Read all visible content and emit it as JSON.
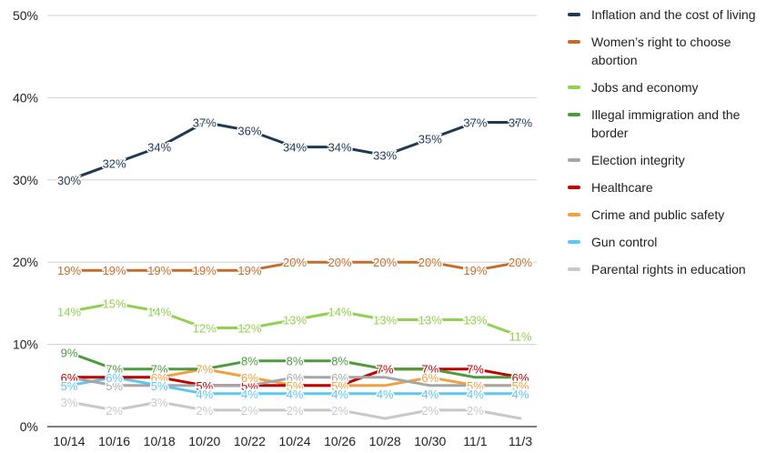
{
  "chart_data": {
    "type": "line",
    "categories": [
      "10/14",
      "10/16",
      "10/18",
      "10/20",
      "10/22",
      "10/24",
      "10/26",
      "10/28",
      "10/30",
      "11/1",
      "11/3"
    ],
    "ylim": [
      0,
      50
    ],
    "yticks": [
      "0%",
      "10%",
      "20%",
      "30%",
      "40%",
      "50%"
    ],
    "ytick_values": [
      0,
      10,
      20,
      30,
      40,
      50
    ],
    "grid": true,
    "legend_position": "right",
    "series": [
      {
        "name": "Inflation and the cost of living",
        "color": "#1f3a53",
        "values": [
          30,
          32,
          34,
          37,
          36,
          34,
          34,
          33,
          35,
          37,
          37
        ],
        "labels": [
          "30%",
          "32%",
          "34%",
          "37%",
          "36%",
          "34%",
          "34%",
          "33%",
          "35%",
          "37%",
          "37%"
        ]
      },
      {
        "name": "Women's right to choose abortion",
        "color": "#c36e2c",
        "values": [
          19,
          19,
          19,
          19,
          19,
          20,
          20,
          20,
          20,
          19,
          20
        ],
        "labels": [
          "19%",
          "19%",
          "19%",
          "19%",
          "19%",
          "20%",
          "20%",
          "20%",
          "20%",
          "19%",
          "20%"
        ]
      },
      {
        "name": "Jobs and economy",
        "color": "#92d050",
        "values": [
          14,
          15,
          14,
          12,
          12,
          13,
          14,
          13,
          13,
          13,
          11
        ],
        "labels": [
          "14%",
          "15%",
          "14%",
          "12%",
          "12%",
          "13%",
          "14%",
          "13%",
          "13%",
          "13%",
          "11%"
        ]
      },
      {
        "name": "Illegal immigration and the border",
        "color": "#4e9a3f",
        "values": [
          9,
          7,
          7,
          7,
          8,
          8,
          8,
          7,
          7,
          6,
          6
        ],
        "labels": [
          "9%",
          "7%",
          "7%",
          "7%",
          "8%",
          "8%",
          "8%",
          "",
          "",
          "",
          ""
        ]
      },
      {
        "name": "Election integrity",
        "color": "#a6a6a6",
        "values": [
          6,
          5,
          5,
          5,
          5,
          6,
          6,
          6,
          5,
          5,
          5
        ],
        "labels": [
          "",
          "5%",
          "",
          "",
          "",
          "6%",
          "6%",
          "",
          "",
          "",
          ""
        ]
      },
      {
        "name": "Healthcare",
        "color": "#c00000",
        "values": [
          6,
          6,
          6,
          5,
          5,
          5,
          5,
          7,
          7,
          7,
          6
        ],
        "labels": [
          "6%",
          "",
          "",
          "5%",
          "5%",
          "",
          "",
          "7%",
          "7%",
          "7%",
          "6%"
        ]
      },
      {
        "name": "Crime and public safety",
        "color": "#f0a040",
        "values": [
          6,
          6,
          6,
          7,
          6,
          5,
          5,
          5,
          6,
          5,
          5
        ],
        "labels": [
          "",
          "",
          "6%",
          "7%",
          "6%",
          "5%",
          "5%",
          "",
          "6%",
          "5%",
          "5%"
        ]
      },
      {
        "name": "Gun control",
        "color": "#5bc8f0",
        "values": [
          5,
          6,
          5,
          4,
          4,
          4,
          4,
          4,
          4,
          4,
          4
        ],
        "labels": [
          "5%",
          "6%",
          "5%",
          "4%",
          "4%",
          "4%",
          "4%",
          "4%",
          "4%",
          "4%",
          "4%"
        ]
      },
      {
        "name": "Parental rights in education",
        "color": "#c8c8c8",
        "values": [
          3,
          2,
          3,
          2,
          2,
          2,
          2,
          1,
          2,
          2,
          1
        ],
        "labels": [
          "3%",
          "2%",
          "3%",
          "2%",
          "2%",
          "2%",
          "2%",
          "",
          "2%",
          "2%",
          ""
        ]
      }
    ]
  },
  "legend": {
    "items": [
      {
        "label": "Inflation and the cost of living",
        "color": "#1f3a53"
      },
      {
        "label": "Women’s right to choose abortion",
        "color": "#c36e2c"
      },
      {
        "label": "Jobs and economy",
        "color": "#92d050"
      },
      {
        "label": "Illegal immigration and the border",
        "color": "#4e9a3f"
      },
      {
        "label": "Election integrity",
        "color": "#a6a6a6"
      },
      {
        "label": "Healthcare",
        "color": "#c00000"
      },
      {
        "label": "Crime and public safety",
        "color": "#f0a040"
      },
      {
        "label": "Gun control",
        "color": "#5bc8f0"
      },
      {
        "label": "Parental rights in education",
        "color": "#c8c8c8"
      }
    ]
  }
}
